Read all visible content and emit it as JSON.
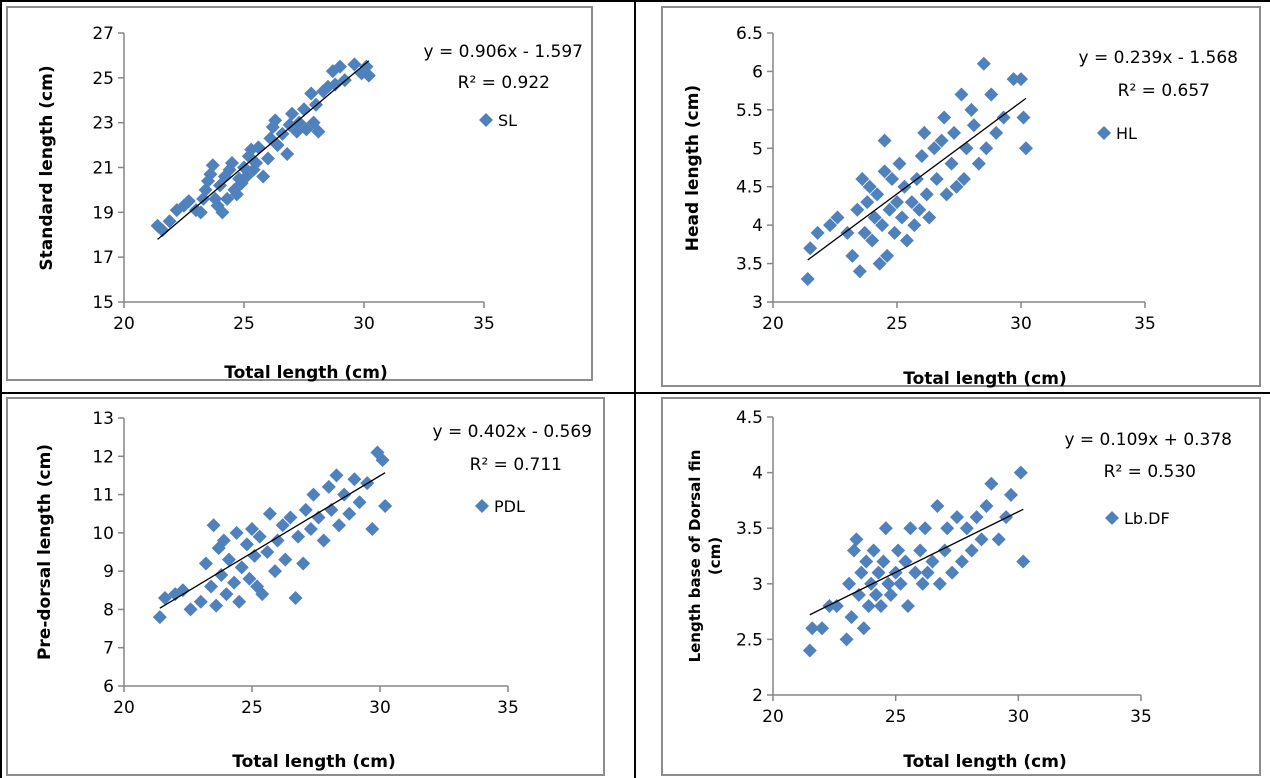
{
  "chart_data": [
    {
      "type": "scatter",
      "xlabel": "Total length (cm)",
      "ylabel": "Standard length (cm)",
      "xlim": [
        20,
        35
      ],
      "ylim": [
        15,
        27
      ],
      "x_ticks": [
        "20",
        "25",
        "30",
        "35"
      ],
      "y_ticks": [
        "15",
        "17",
        "19",
        "21",
        "23",
        "25",
        "27"
      ],
      "equation": "y = 0.906x - 1.597",
      "r2_label": "R² = 0.922",
      "series": [
        {
          "name": "SL",
          "color": "#4f81bd",
          "points": [
            [
              21.4,
              18.4
            ],
            [
              21.6,
              18.2
            ],
            [
              21.9,
              18.6
            ],
            [
              22.2,
              19.1
            ],
            [
              22.5,
              19.3
            ],
            [
              22.7,
              19.5
            ],
            [
              23.0,
              19.1
            ],
            [
              23.2,
              19.0
            ],
            [
              23.3,
              19.6
            ],
            [
              23.4,
              20.0
            ],
            [
              23.5,
              20.4
            ],
            [
              23.6,
              20.7
            ],
            [
              23.7,
              21.1
            ],
            [
              23.8,
              19.6
            ],
            [
              23.9,
              19.3
            ],
            [
              24.0,
              20.2
            ],
            [
              24.1,
              19.0
            ],
            [
              24.2,
              20.6
            ],
            [
              24.3,
              19.6
            ],
            [
              24.4,
              20.9
            ],
            [
              24.5,
              21.2
            ],
            [
              24.6,
              20.0
            ],
            [
              24.7,
              19.8
            ],
            [
              24.8,
              20.5
            ],
            [
              24.9,
              20.3
            ],
            [
              25.0,
              21.0
            ],
            [
              25.1,
              20.6
            ],
            [
              25.2,
              21.5
            ],
            [
              25.3,
              21.8
            ],
            [
              25.4,
              20.9
            ],
            [
              25.5,
              21.2
            ],
            [
              25.6,
              21.9
            ],
            [
              25.8,
              20.6
            ],
            [
              26.0,
              21.4
            ],
            [
              26.1,
              22.3
            ],
            [
              26.2,
              22.8
            ],
            [
              26.3,
              23.1
            ],
            [
              26.4,
              22.0
            ],
            [
              26.6,
              22.5
            ],
            [
              26.8,
              21.6
            ],
            [
              26.9,
              22.9
            ],
            [
              27.0,
              23.4
            ],
            [
              27.2,
              22.6
            ],
            [
              27.3,
              23.0
            ],
            [
              27.5,
              23.6
            ],
            [
              27.6,
              22.7
            ],
            [
              27.8,
              24.3
            ],
            [
              27.9,
              23.0
            ],
            [
              28.0,
              23.8
            ],
            [
              28.1,
              22.6
            ],
            [
              28.3,
              24.4
            ],
            [
              28.5,
              24.6
            ],
            [
              28.7,
              25.3
            ],
            [
              28.8,
              24.7
            ],
            [
              29.0,
              25.5
            ],
            [
              29.2,
              24.9
            ],
            [
              29.6,
              25.6
            ],
            [
              29.9,
              25.2
            ],
            [
              30.1,
              25.5
            ],
            [
              30.2,
              25.1
            ]
          ]
        }
      ]
    },
    {
      "type": "scatter",
      "xlabel": "Total length (cm)",
      "ylabel": "Head length (cm)",
      "xlim": [
        20,
        35
      ],
      "ylim": [
        3,
        6.5
      ],
      "x_ticks": [
        "20",
        "25",
        "30",
        "35"
      ],
      "y_ticks": [
        "3",
        "3.5",
        "4",
        "4.5",
        "5",
        "5.5",
        "6",
        "6.5"
      ],
      "equation": "y = 0.239x - 1.568",
      "r2_label": "R² = 0.657",
      "series": [
        {
          "name": "HL",
          "color": "#4f81bd",
          "points": [
            [
              21.4,
              3.3
            ],
            [
              21.5,
              3.7
            ],
            [
              21.8,
              3.9
            ],
            [
              22.3,
              4.0
            ],
            [
              22.6,
              4.1
            ],
            [
              23.0,
              3.9
            ],
            [
              23.2,
              3.6
            ],
            [
              23.4,
              4.2
            ],
            [
              23.5,
              3.4
            ],
            [
              23.6,
              4.6
            ],
            [
              23.7,
              3.9
            ],
            [
              23.8,
              4.3
            ],
            [
              23.9,
              4.5
            ],
            [
              24.0,
              3.8
            ],
            [
              24.1,
              4.1
            ],
            [
              24.2,
              4.4
            ],
            [
              24.3,
              3.5
            ],
            [
              24.4,
              4.0
            ],
            [
              24.5,
              4.7
            ],
            [
              24.5,
              5.1
            ],
            [
              24.6,
              3.6
            ],
            [
              24.7,
              4.2
            ],
            [
              24.8,
              4.6
            ],
            [
              24.9,
              3.9
            ],
            [
              25.0,
              4.3
            ],
            [
              25.1,
              4.8
            ],
            [
              25.2,
              4.1
            ],
            [
              25.3,
              4.5
            ],
            [
              25.4,
              3.8
            ],
            [
              25.6,
              4.3
            ],
            [
              25.7,
              4.0
            ],
            [
              25.8,
              4.6
            ],
            [
              25.9,
              4.2
            ],
            [
              26.0,
              4.9
            ],
            [
              26.1,
              5.2
            ],
            [
              26.2,
              4.4
            ],
            [
              26.3,
              4.1
            ],
            [
              26.5,
              5.0
            ],
            [
              26.6,
              4.6
            ],
            [
              26.8,
              5.1
            ],
            [
              26.9,
              5.4
            ],
            [
              27.0,
              4.4
            ],
            [
              27.2,
              4.8
            ],
            [
              27.3,
              5.2
            ],
            [
              27.4,
              4.5
            ],
            [
              27.6,
              5.7
            ],
            [
              27.7,
              4.6
            ],
            [
              27.8,
              5.0
            ],
            [
              28.0,
              5.5
            ],
            [
              28.1,
              5.3
            ],
            [
              28.3,
              4.8
            ],
            [
              28.5,
              6.1
            ],
            [
              28.6,
              5.0
            ],
            [
              28.8,
              5.7
            ],
            [
              29.0,
              5.2
            ],
            [
              29.3,
              5.4
            ],
            [
              29.7,
              5.9
            ],
            [
              30.0,
              5.9
            ],
            [
              30.1,
              5.4
            ],
            [
              30.2,
              5.0
            ]
          ]
        }
      ]
    },
    {
      "type": "scatter",
      "xlabel": "Total length (cm)",
      "ylabel": "Pre-dorsal length (cm)",
      "xlim": [
        20,
        35
      ],
      "ylim": [
        6,
        13
      ],
      "x_ticks": [
        "20",
        "25",
        "30",
        "35"
      ],
      "y_ticks": [
        "6",
        "7",
        "8",
        "9",
        "10",
        "11",
        "12",
        "13"
      ],
      "equation": "y = 0.402x - 0.569",
      "r2_label": "R² = 0.711",
      "series": [
        {
          "name": "PDL",
          "color": "#4f81bd",
          "points": [
            [
              21.4,
              7.8
            ],
            [
              21.6,
              8.3
            ],
            [
              22.0,
              8.4
            ],
            [
              22.3,
              8.5
            ],
            [
              22.6,
              8.0
            ],
            [
              23.0,
              8.2
            ],
            [
              23.2,
              9.2
            ],
            [
              23.4,
              8.6
            ],
            [
              23.5,
              10.2
            ],
            [
              23.6,
              8.1
            ],
            [
              23.7,
              9.6
            ],
            [
              23.8,
              8.9
            ],
            [
              23.9,
              9.8
            ],
            [
              24.0,
              8.4
            ],
            [
              24.1,
              9.3
            ],
            [
              24.3,
              8.7
            ],
            [
              24.4,
              10.0
            ],
            [
              24.5,
              8.2
            ],
            [
              24.6,
              9.1
            ],
            [
              24.8,
              9.7
            ],
            [
              24.9,
              8.8
            ],
            [
              25.0,
              10.1
            ],
            [
              25.1,
              9.4
            ],
            [
              25.2,
              8.6
            ],
            [
              25.3,
              9.9
            ],
            [
              25.4,
              8.4
            ],
            [
              25.6,
              9.5
            ],
            [
              25.7,
              10.5
            ],
            [
              25.9,
              9.0
            ],
            [
              26.0,
              9.8
            ],
            [
              26.2,
              10.2
            ],
            [
              26.3,
              9.3
            ],
            [
              26.5,
              10.4
            ],
            [
              26.7,
              8.3
            ],
            [
              26.8,
              9.9
            ],
            [
              27.0,
              9.2
            ],
            [
              27.1,
              10.6
            ],
            [
              27.3,
              10.1
            ],
            [
              27.4,
              11.0
            ],
            [
              27.6,
              10.4
            ],
            [
              27.8,
              9.8
            ],
            [
              28.0,
              11.2
            ],
            [
              28.1,
              10.6
            ],
            [
              28.3,
              11.5
            ],
            [
              28.4,
              10.2
            ],
            [
              28.6,
              11.0
            ],
            [
              28.8,
              10.5
            ],
            [
              29.0,
              11.4
            ],
            [
              29.2,
              10.8
            ],
            [
              29.5,
              11.3
            ],
            [
              29.7,
              10.1
            ],
            [
              29.9,
              12.1
            ],
            [
              30.1,
              11.9
            ],
            [
              30.2,
              10.7
            ]
          ]
        }
      ]
    },
    {
      "type": "scatter",
      "xlabel": "Total length (cm)",
      "ylabel": "Length base of Dorsal fin (cm)",
      "ylabel_line1": "Length base of Dorsal fin",
      "ylabel_line2": "(cm)",
      "xlim": [
        20,
        35
      ],
      "ylim": [
        2,
        4.5
      ],
      "x_ticks": [
        "20",
        "25",
        "30",
        "35"
      ],
      "y_ticks": [
        "2",
        "2.5",
        "3",
        "3.5",
        "4",
        "4.5"
      ],
      "equation": "y = 0.109x + 0.378",
      "r2_label": "R² = 0.530",
      "series": [
        {
          "name": "Lb.DF",
          "color": "#4f81bd",
          "points": [
            [
              21.5,
              2.4
            ],
            [
              21.6,
              2.6
            ],
            [
              22.0,
              2.6
            ],
            [
              22.3,
              2.8
            ],
            [
              22.6,
              2.8
            ],
            [
              23.0,
              2.5
            ],
            [
              23.1,
              3.0
            ],
            [
              23.2,
              2.7
            ],
            [
              23.3,
              3.3
            ],
            [
              23.4,
              3.4
            ],
            [
              23.5,
              2.9
            ],
            [
              23.6,
              3.1
            ],
            [
              23.7,
              2.6
            ],
            [
              23.8,
              3.2
            ],
            [
              23.9,
              2.8
            ],
            [
              24.0,
              3.0
            ],
            [
              24.1,
              3.3
            ],
            [
              24.2,
              2.9
            ],
            [
              24.3,
              3.1
            ],
            [
              24.4,
              2.8
            ],
            [
              24.5,
              3.2
            ],
            [
              24.6,
              3.5
            ],
            [
              24.7,
              3.0
            ],
            [
              24.8,
              2.9
            ],
            [
              25.0,
              3.1
            ],
            [
              25.1,
              3.3
            ],
            [
              25.2,
              3.0
            ],
            [
              25.4,
              3.2
            ],
            [
              25.5,
              2.8
            ],
            [
              25.6,
              3.5
            ],
            [
              25.8,
              3.1
            ],
            [
              26.0,
              3.3
            ],
            [
              26.1,
              3.0
            ],
            [
              26.2,
              3.5
            ],
            [
              26.3,
              3.1
            ],
            [
              26.5,
              3.2
            ],
            [
              26.7,
              3.7
            ],
            [
              26.8,
              3.0
            ],
            [
              27.0,
              3.3
            ],
            [
              27.1,
              3.5
            ],
            [
              27.3,
              3.1
            ],
            [
              27.5,
              3.6
            ],
            [
              27.7,
              3.2
            ],
            [
              27.9,
              3.5
            ],
            [
              28.1,
              3.3
            ],
            [
              28.3,
              3.6
            ],
            [
              28.5,
              3.4
            ],
            [
              28.7,
              3.7
            ],
            [
              28.9,
              3.9
            ],
            [
              29.2,
              3.4
            ],
            [
              29.5,
              3.6
            ],
            [
              29.7,
              3.8
            ],
            [
              30.1,
              4.0
            ],
            [
              30.2,
              3.2
            ]
          ]
        }
      ]
    }
  ]
}
